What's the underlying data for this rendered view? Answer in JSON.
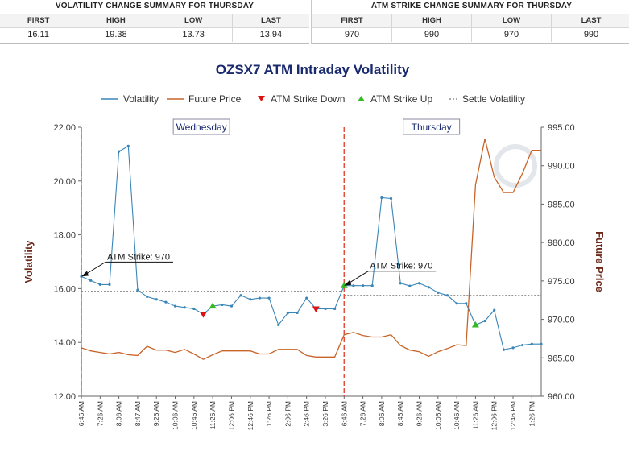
{
  "summary": {
    "volatility": {
      "title": "VOLATILITY CHANGE SUMMARY FOR THURSDAY",
      "headers": [
        "FIRST",
        "HIGH",
        "LOW",
        "LAST"
      ],
      "values": [
        "16.11",
        "19.38",
        "13.73",
        "13.94"
      ]
    },
    "atm_strike": {
      "title": "ATM STRIKE CHANGE SUMMARY FOR THURSDAY",
      "headers": [
        "FIRST",
        "HIGH",
        "LOW",
        "LAST"
      ],
      "values": [
        "970",
        "990",
        "970",
        "990"
      ]
    }
  },
  "chart_data": {
    "type": "line",
    "title": "OZSX7 ATM Intraday Volatility",
    "ylabel": "Volatility",
    "y2label": "Future Price",
    "ylim": [
      12,
      22
    ],
    "y2lim": [
      960,
      995
    ],
    "yticks": [
      "12.00",
      "14.00",
      "16.00",
      "18.00",
      "20.00",
      "22.00"
    ],
    "y2ticks": [
      "960.00",
      "965.00",
      "970.00",
      "975.00",
      "980.00",
      "985.00",
      "990.00",
      "995.00"
    ],
    "x": [
      "6:46 AM",
      "6:56 AM",
      "7:06 AM",
      "7:16 AM",
      "7:26 AM",
      "7:36 AM",
      "7:46 AM",
      "7:56 AM",
      "8:06 AM",
      "8:16 AM",
      "8:26 AM",
      "8:36 AM",
      "8:47 AM",
      "8:56 AM",
      "9:06 AM",
      "9:16 AM",
      "9:26 AM",
      "9:36 AM",
      "9:46 AM",
      "9:56 AM",
      "10:06 AM",
      "10:16 AM",
      "10:26 AM",
      "10:36 AM",
      "10:46 AM",
      "10:56 AM",
      "11:06 AM",
      "11:16 AM",
      "11:26 AM",
      "11:36 AM",
      "11:46 AM",
      "11:56 AM",
      "12:06 PM",
      "12:16 PM",
      "12:26 PM",
      "12:36 PM",
      "12:46 PM",
      "12:56 PM",
      "1:06 PM",
      "1:16 PM",
      "1:26 PM",
      "1:36 PM",
      "1:46 PM",
      "1:56 PM",
      "2:06 PM",
      "2:16 PM",
      "2:26 PM",
      "2:36 PM",
      "2:46 PM",
      "2:56 PM",
      "3:06 PM",
      "3:16 PM",
      "3:26 PM",
      "3:36 PM",
      "3:46 PM",
      "3:56 PM",
      "6:46 AM",
      "6:56 AM",
      "7:06 AM",
      "7:16 AM",
      "7:26 AM",
      "7:36 AM",
      "7:46 AM",
      "7:56 AM",
      "8:06 AM",
      "8:16 AM",
      "8:26 AM",
      "8:36 AM",
      "8:46 AM",
      "8:56 AM",
      "9:06 AM",
      "9:16 AM",
      "9:26 AM",
      "9:36 AM",
      "9:46 AM",
      "9:56 AM",
      "10:06 AM",
      "10:16 AM",
      "10:26 AM",
      "10:36 AM",
      "10:46 AM",
      "10:56 AM",
      "11:06 AM",
      "11:16 AM",
      "11:26 AM",
      "11:36 AM",
      "11:46 AM",
      "11:56 AM",
      "12:06 PM",
      "12:16 PM",
      "12:26 PM",
      "12:36 PM",
      "12:46 PM",
      "12:56 PM",
      "1:06 PM",
      "1:16 PM",
      "1:26 PM",
      "1:36 PM"
    ],
    "xtick_labels": [
      {
        "i": 0,
        "label": "6:46 AM"
      },
      {
        "i": 4,
        "label": "7:26 AM"
      },
      {
        "i": 8,
        "label": "8:06 AM"
      },
      {
        "i": 12,
        "label": "8:47 AM"
      },
      {
        "i": 16,
        "label": "9:26 AM"
      },
      {
        "i": 20,
        "label": "10:06 AM"
      },
      {
        "i": 24,
        "label": "10:46 AM"
      },
      {
        "i": 28,
        "label": "11:26 AM"
      },
      {
        "i": 32,
        "label": "12:06 PM"
      },
      {
        "i": 36,
        "label": "12:46 PM"
      },
      {
        "i": 40,
        "label": "1:26 PM"
      },
      {
        "i": 44,
        "label": "2:06 PM"
      },
      {
        "i": 48,
        "label": "2:46 PM"
      },
      {
        "i": 52,
        "label": "3:26 PM"
      },
      {
        "i": 56,
        "label": "6:46 AM"
      },
      {
        "i": 60,
        "label": "7:26 AM"
      },
      {
        "i": 64,
        "label": "8:06 AM"
      },
      {
        "i": 68,
        "label": "8:46 AM"
      },
      {
        "i": 72,
        "label": "9:26 AM"
      },
      {
        "i": 76,
        "label": "10:06 AM"
      },
      {
        "i": 80,
        "label": "10:46 AM"
      },
      {
        "i": 84,
        "label": "11:26 AM"
      },
      {
        "i": 88,
        "label": "12:06 PM"
      },
      {
        "i": 92,
        "label": "12:46 PM"
      },
      {
        "i": 96,
        "label": "1:26 PM"
      }
    ],
    "volatility_points": [
      [
        0,
        16.45
      ],
      [
        4,
        16.3
      ],
      [
        8,
        16.15
      ],
      [
        12,
        16.15
      ],
      [
        16,
        21.1
      ],
      [
        20,
        21.3
      ],
      [
        24,
        15.95
      ],
      [
        28,
        15.7
      ],
      [
        32,
        15.6
      ],
      [
        36,
        15.5
      ],
      [
        40,
        15.35
      ],
      [
        44,
        15.3
      ],
      [
        48,
        15.25
      ],
      [
        52,
        15.05
      ],
      [
        56,
        15.35
      ],
      [
        60,
        15.4
      ],
      [
        64,
        15.35
      ],
      [
        68,
        15.75
      ],
      [
        72,
        15.6
      ],
      [
        76,
        15.65
      ],
      [
        80,
        15.65
      ],
      [
        84,
        14.65
      ],
      [
        88,
        15.1
      ],
      [
        92,
        15.1
      ],
      [
        96,
        15.65
      ],
      [
        100,
        15.25
      ],
      [
        104,
        15.25
      ],
      [
        108,
        15.25
      ],
      [
        112,
        16.11
      ],
      [
        116,
        16.11
      ],
      [
        120,
        16.11
      ],
      [
        124,
        16.11
      ],
      [
        128,
        19.38
      ],
      [
        132,
        19.35
      ],
      [
        136,
        16.2
      ],
      [
        140,
        16.1
      ],
      [
        144,
        16.2
      ],
      [
        148,
        16.05
      ],
      [
        152,
        15.85
      ],
      [
        156,
        15.75
      ],
      [
        160,
        15.45
      ],
      [
        164,
        15.45
      ],
      [
        168,
        14.65
      ],
      [
        172,
        14.8
      ],
      [
        176,
        15.2
      ],
      [
        180,
        13.73
      ],
      [
        184,
        13.8
      ],
      [
        188,
        13.9
      ],
      [
        192,
        13.94
      ],
      [
        196,
        13.94
      ]
    ],
    "future_price_points": [
      [
        0,
        966.3
      ],
      [
        4,
        965.9
      ],
      [
        8,
        965.7
      ],
      [
        12,
        965.5
      ],
      [
        16,
        965.7
      ],
      [
        20,
        965.4
      ],
      [
        24,
        965.3
      ],
      [
        28,
        966.5
      ],
      [
        32,
        966.0
      ],
      [
        36,
        966.0
      ],
      [
        40,
        965.7
      ],
      [
        44,
        966.1
      ],
      [
        48,
        965.5
      ],
      [
        52,
        964.8
      ],
      [
        56,
        965.4
      ],
      [
        60,
        965.9
      ],
      [
        64,
        965.9
      ],
      [
        68,
        965.9
      ],
      [
        72,
        965.9
      ],
      [
        76,
        965.5
      ],
      [
        80,
        965.5
      ],
      [
        84,
        966.1
      ],
      [
        88,
        966.1
      ],
      [
        92,
        966.1
      ],
      [
        96,
        965.3
      ],
      [
        100,
        965.1
      ],
      [
        104,
        965.1
      ],
      [
        108,
        965.1
      ],
      [
        112,
        968.0
      ],
      [
        116,
        968.3
      ],
      [
        120,
        967.9
      ],
      [
        124,
        967.7
      ],
      [
        128,
        967.7
      ],
      [
        132,
        968.0
      ],
      [
        136,
        966.6
      ],
      [
        140,
        966.0
      ],
      [
        144,
        965.8
      ],
      [
        148,
        965.2
      ],
      [
        152,
        965.8
      ],
      [
        156,
        966.2
      ],
      [
        160,
        966.7
      ],
      [
        164,
        966.6
      ],
      [
        168,
        987.5
      ],
      [
        172,
        993.5
      ],
      [
        176,
        988.5
      ],
      [
        180,
        986.5
      ],
      [
        184,
        986.5
      ],
      [
        188,
        989.0
      ],
      [
        192,
        992.0
      ],
      [
        196,
        992.0
      ]
    ],
    "atm_strike_down": [
      [
        52,
        15.05
      ],
      [
        100,
        15.25
      ]
    ],
    "atm_strike_up": [
      [
        56,
        15.35
      ],
      [
        112,
        16.11
      ],
      [
        168,
        14.65
      ]
    ],
    "settle_volatility": [
      {
        "from": 0,
        "to": 111,
        "value": 15.9
      },
      {
        "from": 112,
        "to": 196,
        "value": 15.75
      }
    ],
    "session_dividers": [
      0,
      112
    ],
    "sessions": [
      {
        "label": "Wednesday",
        "center": 56
      },
      {
        "label": "Thursday",
        "center": 154
      }
    ],
    "annotations": [
      {
        "label": "ATM Strike: 970",
        "at": 0,
        "y": 16.45
      },
      {
        "label": "ATM Strike: 970",
        "at": 112,
        "y": 16.11
      }
    ],
    "legend": [
      {
        "key": "volatility",
        "label": "Volatility"
      },
      {
        "key": "future",
        "label": "Future Price"
      },
      {
        "key": "down",
        "label": "ATM Strike Down"
      },
      {
        "key": "up",
        "label": "ATM Strike Up"
      },
      {
        "key": "settle",
        "label": "Settle Volatility"
      }
    ],
    "legend_position": "top",
    "grid": false,
    "colors": {
      "volatility": "#3a86b8",
      "future": "#c8642a",
      "down": "#dd1111",
      "up": "#33bb22",
      "settle": "#555555",
      "divider": "#e0503a",
      "axis_title": "#6b2a1a",
      "session_label": "#1a2a6e"
    }
  }
}
